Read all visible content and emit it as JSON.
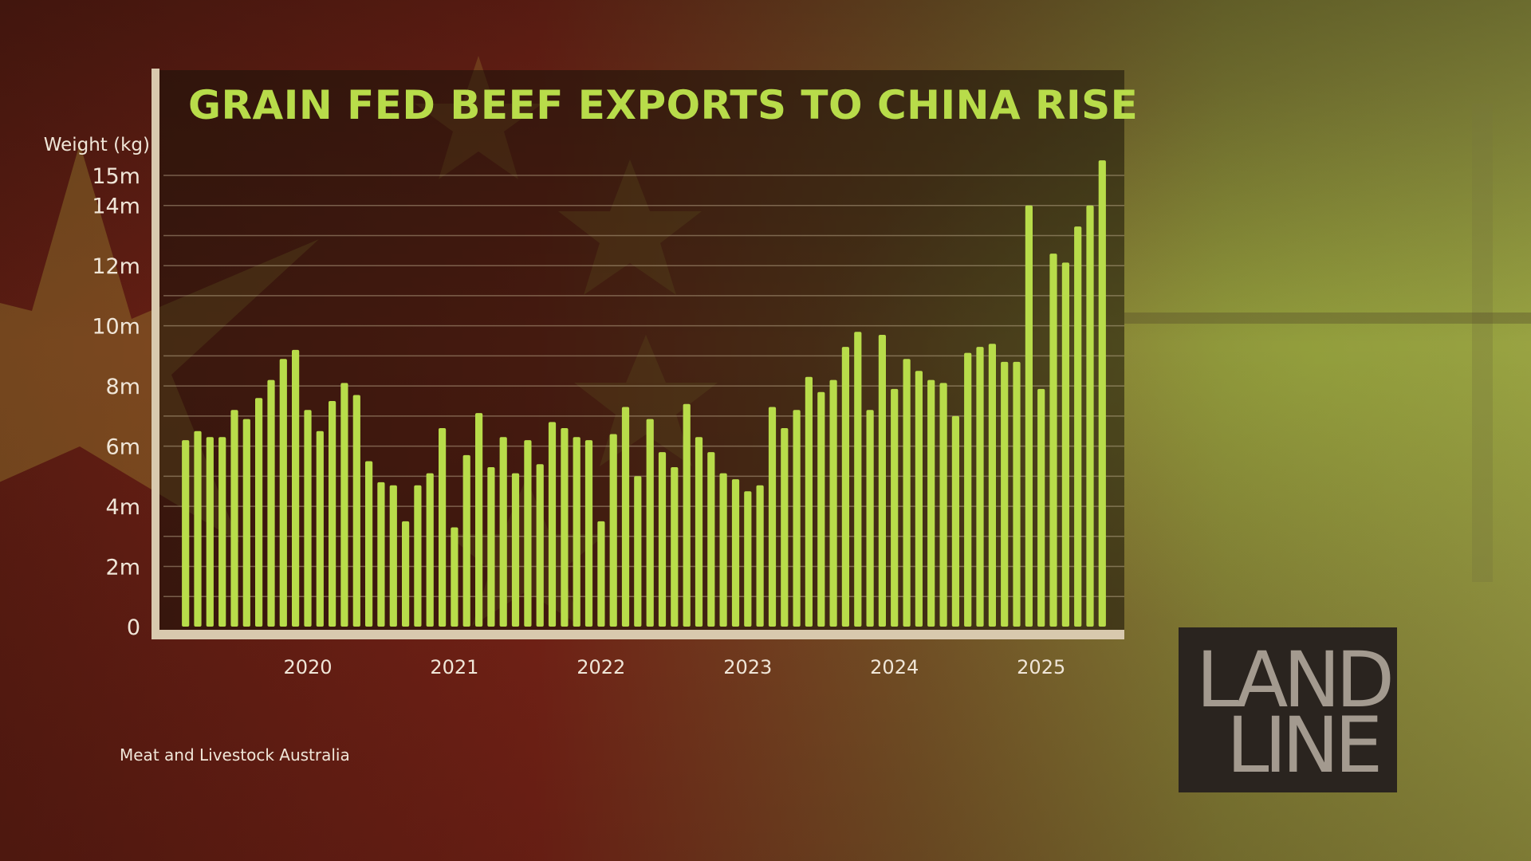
{
  "chart_data": {
    "type": "bar",
    "title": "GRAIN FED BEEF EXPORTS TO CHINA RISE",
    "ylabel": "Weight (kg)",
    "y_ticks": [
      {
        "value": 0,
        "label": "0"
      },
      {
        "value": 2000000,
        "label": "2m"
      },
      {
        "value": 4000000,
        "label": "4m"
      },
      {
        "value": 6000000,
        "label": "6m"
      },
      {
        "value": 8000000,
        "label": "8m"
      },
      {
        "value": 10000000,
        "label": "10m"
      },
      {
        "value": 12000000,
        "label": "12m"
      },
      {
        "value": 14000000,
        "label": "14m"
      },
      {
        "value": 15000000,
        "label": "15m"
      }
    ],
    "ylim": [
      0,
      16000000
    ],
    "grid": true,
    "x_ticks": [
      {
        "label": "2020",
        "bar_index": 10
      },
      {
        "label": "2021",
        "bar_index": 22
      },
      {
        "label": "2022",
        "bar_index": 34
      },
      {
        "label": "2023",
        "bar_index": 46
      },
      {
        "label": "2024",
        "bar_index": 58
      },
      {
        "label": "2025",
        "bar_index": 70
      }
    ],
    "values": [
      6200000,
      6500000,
      6300000,
      6300000,
      7200000,
      6900000,
      7600000,
      8200000,
      8900000,
      9200000,
      7200000,
      6500000,
      7500000,
      8100000,
      7700000,
      5500000,
      4800000,
      4700000,
      3500000,
      4700000,
      5100000,
      6600000,
      3300000,
      5700000,
      7100000,
      5300000,
      6300000,
      5100000,
      6200000,
      5400000,
      6800000,
      6600000,
      6300000,
      6200000,
      3500000,
      6400000,
      7300000,
      5000000,
      6900000,
      5800000,
      5300000,
      7400000,
      6300000,
      5800000,
      5100000,
      4900000,
      4500000,
      4700000,
      7300000,
      6600000,
      7200000,
      8300000,
      7800000,
      8200000,
      9300000,
      9800000,
      7200000,
      9700000,
      7900000,
      8900000,
      8500000,
      8200000,
      8100000,
      7000000,
      9100000,
      9300000,
      9400000,
      8800000,
      8800000,
      14000000,
      7900000,
      12400000,
      12100000,
      13300000,
      14000000,
      15500000
    ]
  },
  "source": "Meat and Livestock Australia",
  "logo": {
    "line1": "LAND",
    "line2": "LINE"
  },
  "colors": {
    "bar": "#b8dc4a",
    "axis": "#d8c9ae",
    "grid": "#c9b79a",
    "text": "#f0e6d8"
  }
}
